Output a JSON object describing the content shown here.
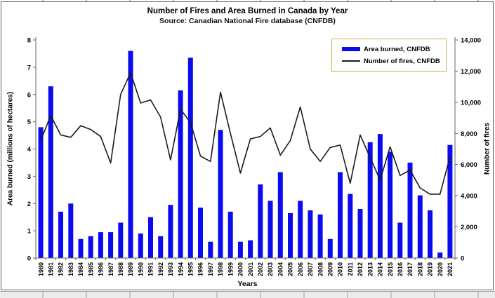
{
  "window": {
    "title": "Number of Fires and Area Burned in Canada by Year",
    "subtitle": "Source: Canadian National Fire database (CNFDB)"
  },
  "legend": {
    "border_color": "#cfac52",
    "items": [
      {
        "label": "Area burned, CNFDB",
        "swatch": "bar",
        "color": "#0b0bf0"
      },
      {
        "label": "Number of fires, CNFDB",
        "swatch": "line",
        "color": "#1a1a1a"
      }
    ]
  },
  "chart_data": {
    "type": "bar+line",
    "title": "Number of Fires and Area Burned in Canada by Year",
    "subtitle": "Source: Canadian National Fire database (CNFDB)",
    "xlabel": "Years",
    "ylabel_left": "Area burned (millions of hectares)",
    "ylabel_right": "Number of fires",
    "ylim_left": [
      0,
      8
    ],
    "ylim_right": [
      0,
      14000
    ],
    "grid": false,
    "legend_position": "top-right-inside",
    "left_axis_ticks": [
      "0",
      "1",
      "2",
      "3",
      "4",
      "5",
      "6",
      "7",
      "8"
    ],
    "right_axis_ticks": [
      "0",
      "2,000",
      "4,000",
      "6,000",
      "8,000",
      "10,000",
      "12,000",
      "14,000"
    ],
    "categories": [
      "1980",
      "1981",
      "1982",
      "1983",
      "1984",
      "1985",
      "1986",
      "1987",
      "1988",
      "1989",
      "1990",
      "1991",
      "1992",
      "1993",
      "1994",
      "1995",
      "1996",
      "1997",
      "1998",
      "1999",
      "2000",
      "2001",
      "2002",
      "2003",
      "2004",
      "2005",
      "2006",
      "2007",
      "2008",
      "2009",
      "2010",
      "2011",
      "2012",
      "2013",
      "2014",
      "2015",
      "2016",
      "2017",
      "2018",
      "2019",
      "2020",
      "2021"
    ],
    "series": [
      {
        "name": "Area burned, CNFDB",
        "type": "bar",
        "axis": "left",
        "color": "#0b0bf0",
        "units": "millions of hectares",
        "values": [
          4.8,
          6.3,
          1.7,
          2.0,
          0.7,
          0.8,
          0.95,
          0.95,
          1.3,
          7.6,
          0.9,
          1.5,
          0.8,
          1.95,
          6.15,
          7.35,
          1.85,
          0.6,
          4.7,
          1.7,
          0.6,
          0.65,
          2.7,
          2.1,
          3.15,
          1.65,
          2.1,
          1.75,
          1.6,
          0.7,
          3.15,
          2.35,
          1.8,
          4.25,
          4.55,
          3.9,
          1.3,
          3.5,
          2.3,
          1.75,
          0.2,
          4.15
        ]
      },
      {
        "name": "Number of fires, CNFDB",
        "type": "line",
        "axis": "right",
        "color": "#1a1a1a",
        "units": "fires",
        "values": [
          7550,
          9150,
          7900,
          7750,
          8500,
          8250,
          7800,
          6100,
          10500,
          11900,
          9950,
          10150,
          9050,
          6300,
          9550,
          8700,
          6550,
          6200,
          10650,
          8000,
          5450,
          7650,
          7800,
          8350,
          6600,
          7550,
          9700,
          7000,
          6200,
          7100,
          7250,
          4800,
          7900,
          6450,
          5000,
          7150,
          5300,
          5650,
          4500,
          4100,
          4100,
          6500
        ]
      }
    ]
  }
}
